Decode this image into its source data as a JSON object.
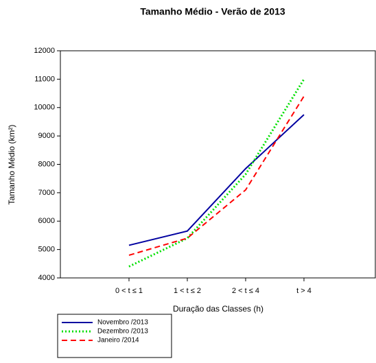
{
  "chart_data": {
    "type": "line",
    "title": "Tamanho Médio - Verão de 2013",
    "x_label": "Duração das Classes (h)",
    "y_label": "Tamanho Médio (km²)",
    "categories": [
      "0 < t ≤ 1",
      "1 < t ≤ 2",
      "2 < t ≤ 4",
      "t > 4"
    ],
    "series": [
      {
        "name": "Novembro /2013",
        "color": "#0000a0",
        "linestyle": "solid",
        "values": [
          5150,
          5650,
          7850,
          9750
        ]
      },
      {
        "name": "Dezembro /2013",
        "color": "#00e000",
        "linestyle": "dotted",
        "values": [
          4400,
          5400,
          7650,
          11000
        ]
      },
      {
        "name": "Janeiro /2014",
        "color": "#ff0000",
        "linestyle": "dashed",
        "values": [
          4800,
          5400,
          7100,
          10400
        ]
      }
    ],
    "ylim": [
      4000,
      12000
    ],
    "yticks": [
      4000,
      5000,
      6000,
      7000,
      8000,
      9000,
      10000,
      11000,
      12000
    ],
    "grid": false,
    "legend_position": "bottom-left"
  }
}
